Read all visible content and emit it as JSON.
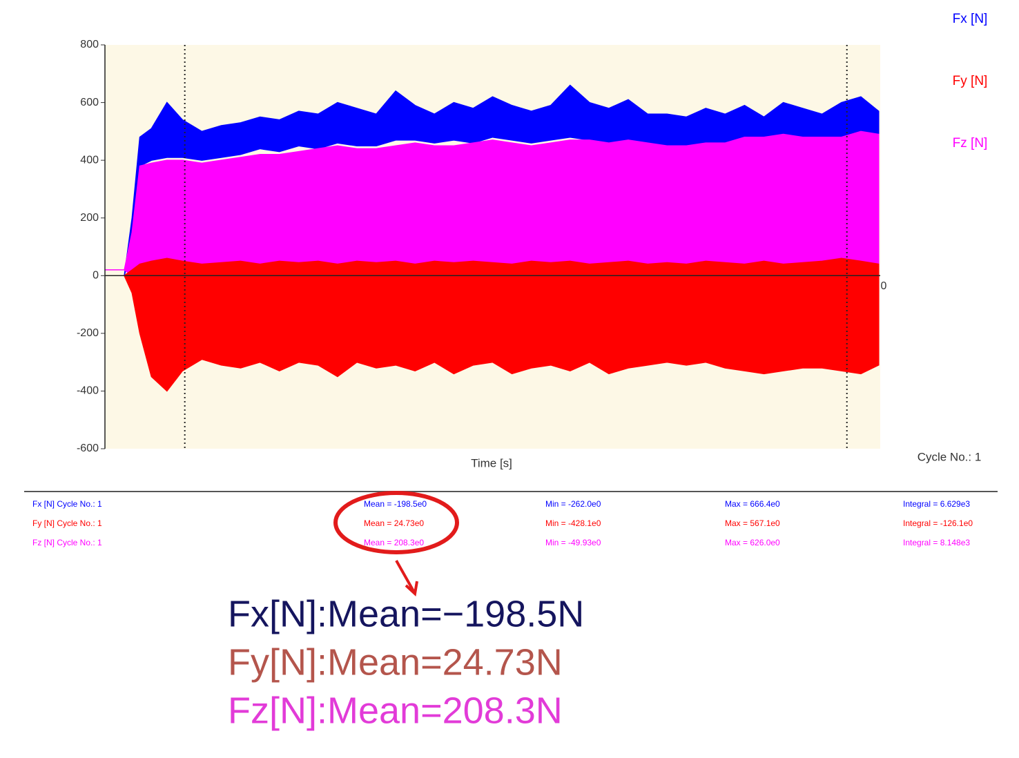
{
  "chart_data": {
    "type": "band",
    "legend": "right",
    "x_label": "Time [s]",
    "x_end_label": "0",
    "cycle_label": "Cycle No.: 1",
    "background": "#fdf8e6",
    "ylim": [
      -600,
      800
    ],
    "yticks": [
      -600,
      -400,
      -200,
      0,
      200,
      400,
      600,
      800
    ],
    "xlim": [
      0,
      100
    ],
    "cursors": [
      10.3,
      95.7
    ],
    "x": [
      0,
      2.5,
      3.5,
      4.5,
      6,
      8,
      10,
      12.5,
      15,
      17.5,
      20,
      22.5,
      25,
      27.5,
      30,
      32.5,
      35,
      37.5,
      40,
      42.5,
      45,
      47.5,
      50,
      52.5,
      55,
      57.5,
      60,
      62.5,
      65,
      67.5,
      70,
      72.5,
      75,
      77.5,
      80,
      82.5,
      85,
      87.5,
      90,
      92.5,
      95,
      97.5,
      99.8
    ],
    "series": [
      {
        "name": "Fx [N]",
        "color": "#0000ff",
        "upper": [
          0,
          0,
          200,
          480,
          510,
          600,
          540,
          500,
          520,
          530,
          550,
          540,
          570,
          560,
          600,
          580,
          560,
          640,
          590,
          560,
          600,
          580,
          620,
          590,
          570,
          590,
          660,
          600,
          580,
          610,
          560,
          560,
          550,
          580,
          560,
          590,
          550,
          600,
          580,
          560,
          600,
          620,
          570
        ],
        "lower": [
          0,
          0,
          100,
          380,
          400,
          410,
          410,
          400,
          410,
          420,
          440,
          430,
          450,
          440,
          460,
          450,
          450,
          470,
          470,
          460,
          470,
          460,
          480,
          470,
          460,
          470,
          480,
          470,
          460,
          470,
          450,
          440,
          440,
          450,
          450,
          470,
          470,
          480,
          480,
          470,
          480,
          480,
          480
        ]
      },
      {
        "name": "Fy [N]",
        "color": "#ff0000",
        "upper": [
          0,
          0,
          20,
          40,
          50,
          60,
          50,
          40,
          45,
          50,
          40,
          50,
          45,
          50,
          40,
          50,
          45,
          50,
          40,
          50,
          45,
          50,
          45,
          40,
          50,
          45,
          50,
          40,
          45,
          50,
          40,
          45,
          40,
          50,
          45,
          40,
          50,
          40,
          45,
          50,
          60,
          50,
          40
        ],
        "lower": [
          0,
          0,
          -60,
          -200,
          -350,
          -400,
          -330,
          -290,
          -310,
          -320,
          -300,
          -330,
          -300,
          -310,
          -350,
          -300,
          -320,
          -310,
          -330,
          -300,
          -340,
          -310,
          -300,
          -340,
          -320,
          -310,
          -330,
          -300,
          -340,
          -320,
          -310,
          -300,
          -310,
          -300,
          -320,
          -330,
          -340,
          -330,
          -320,
          -320,
          -330,
          -340,
          -310
        ]
      },
      {
        "name": "Fz [N]",
        "color": "#ff00ff",
        "upper": [
          20,
          20,
          150,
          380,
          390,
          400,
          400,
          390,
          400,
          410,
          420,
          420,
          430,
          440,
          450,
          440,
          440,
          450,
          460,
          450,
          450,
          460,
          470,
          460,
          450,
          460,
          470,
          470,
          460,
          470,
          460,
          450,
          450,
          460,
          460,
          480,
          480,
          490,
          480,
          480,
          480,
          500,
          490
        ],
        "lower": [
          20,
          20,
          0,
          -30,
          -40,
          -40,
          -40,
          -40,
          -40,
          -40,
          -40,
          -40,
          -40,
          -40,
          -40,
          -40,
          -40,
          -40,
          -40,
          -40,
          -40,
          -40,
          -40,
          -40,
          -40,
          -40,
          -40,
          -40,
          -40,
          -40,
          -40,
          -40,
          -40,
          -40,
          -40,
          -40,
          -40,
          -40,
          -40,
          -40,
          -40,
          -40,
          -40
        ]
      }
    ],
    "draw_order": [
      0,
      2,
      1
    ]
  },
  "stats": {
    "rows": [
      [
        "Fx [N] Cycle No.: 1",
        "Mean = -198.5e0",
        "Min = -262.0e0",
        "Max = 666.4e0",
        "Integral = 6.629e3"
      ],
      [
        "Fy [N] Cycle No.: 1",
        "Mean = 24.73e0",
        "Min = -428.1e0",
        "Max = 567.1e0",
        "Integral = -126.1e0"
      ],
      [
        "Fz [N] Cycle No.: 1",
        "Mean = 208.3e0",
        "Min = -49.93e0",
        "Max = 626.0e0",
        "Integral = 8.148e3"
      ]
    ]
  },
  "annotation": {
    "lines": [
      {
        "text": "Fx[N]:Mean=−198.5N",
        "color": "#15155e"
      },
      {
        "text": "Fy[N]:Mean=24.73N",
        "color": "#b4554c"
      },
      {
        "text": "Fz[N]:Mean=208.3N",
        "color": "#e23bd8"
      }
    ]
  }
}
